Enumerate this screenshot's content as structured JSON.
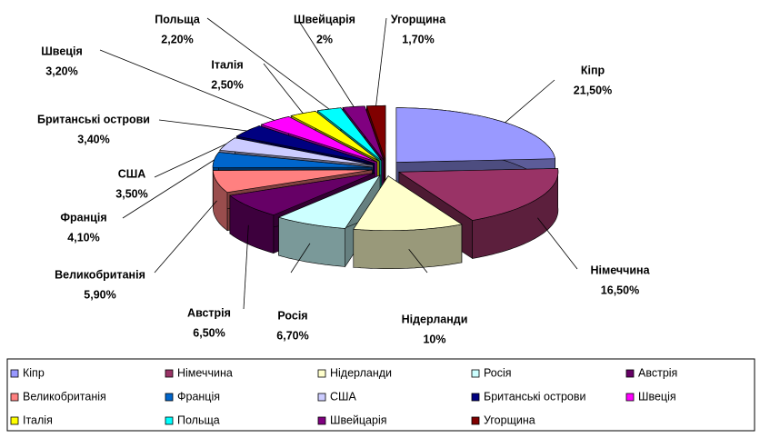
{
  "chart_data": {
    "type": "pie",
    "categories": [
      "Кіпр",
      "Німеччина",
      "Нідерланди",
      "Росія",
      "Австрія",
      "Великобританія",
      "Франція",
      "США",
      "Британські острови",
      "Швеція",
      "Італія",
      "Польща",
      "Швейцарія",
      "Угорщина"
    ],
    "values": [
      21.5,
      16.5,
      10,
      6.7,
      6.5,
      5.9,
      4.1,
      3.5,
      3.4,
      3.2,
      2.5,
      2.2,
      2,
      1.7
    ],
    "value_labels": [
      "21,50%",
      "16,50%",
      "10%",
      "6,70%",
      "6,50%",
      "5,90%",
      "4,10%",
      "3,50%",
      "3,40%",
      "3,20%",
      "2,50%",
      "2,20%",
      "2%",
      "1,70%"
    ],
    "colors": [
      "#9999ff",
      "#993366",
      "#ffffcc",
      "#ccffff",
      "#660066",
      "#ff8080",
      "#0066cc",
      "#ccccff",
      "#000080",
      "#ff00ff",
      "#ffff00",
      "#00ffff",
      "#800080",
      "#800000"
    ],
    "legend": "bottom"
  }
}
